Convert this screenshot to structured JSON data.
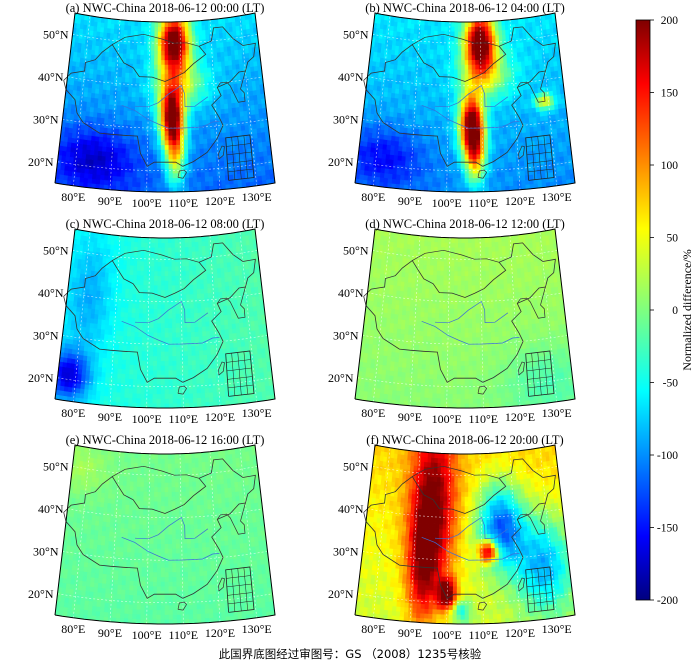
{
  "chart_data": {
    "type": "heatmap",
    "panels": [
      {
        "title": "(a) NWC-China 2018-06-12 00:00 (LT)",
        "pattern": "a"
      },
      {
        "title": "(b) NWC-China 2018-06-12 04:00 (LT)",
        "pattern": "b"
      },
      {
        "title": "(c) NWC-China 2018-06-12 08:00 (LT)",
        "pattern": "c"
      },
      {
        "title": "(d) NWC-China 2018-06-12 12:00 (LT)",
        "pattern": "d"
      },
      {
        "title": "(e) NWC-China 2018-06-12 16:00 (LT)",
        "pattern": "e"
      },
      {
        "title": "(f) NWC-China 2018-06-12 20:00 (LT)",
        "pattern": "f"
      }
    ],
    "lat_ticks": [
      "20°N",
      "30°N",
      "40°N",
      "50°N"
    ],
    "lat_values": [
      20,
      30,
      40,
      50
    ],
    "lon_ticks": [
      "80°E",
      "90°E",
      "100°E",
      "110°E",
      "120°E",
      "130°E"
    ],
    "lon_values": [
      80,
      90,
      100,
      110,
      120,
      130
    ],
    "colorbar": {
      "label": "Normalized difference/%",
      "min": -200,
      "max": 200,
      "ticks": [
        "200",
        "150",
        "100",
        "50",
        "0",
        "-50",
        "-100",
        "-150",
        "-200"
      ],
      "tick_values": [
        200,
        150,
        100,
        50,
        0,
        -50,
        -100,
        -150,
        -200
      ],
      "colormap": "jet"
    }
  },
  "footer": "此国界底图经过审图号：GS （2008）1235号核验"
}
